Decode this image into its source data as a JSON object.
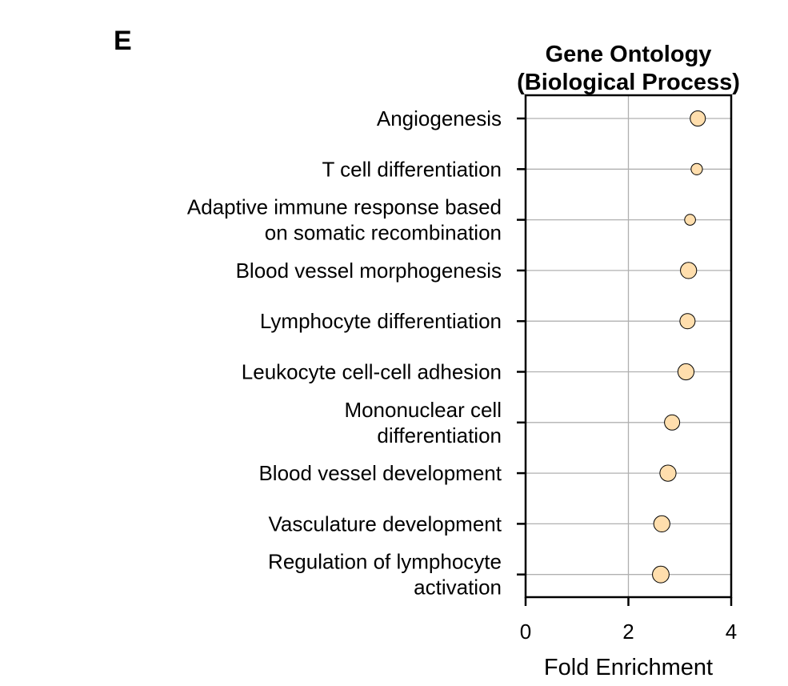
{
  "panel_letter": "E",
  "chart_data": {
    "type": "scatter",
    "title_lines": [
      "Gene Ontology",
      "(Biological Process)"
    ],
    "xlabel": "Fold Enrichment",
    "ylabel": "",
    "xlim": [
      0,
      4
    ],
    "xticks": [
      0,
      2,
      4
    ],
    "vertical_grid_at": [
      2
    ],
    "horizontal_grid": true,
    "marker_color": "#FFDEAD",
    "marker_edge_color": "#000000",
    "categories": [
      {
        "label_lines": [
          "Angiogenesis"
        ],
        "x": 3.35,
        "size_rank": 0.75
      },
      {
        "label_lines": [
          "T cell differentiation"
        ],
        "x": 3.33,
        "size_rank": 0.35
      },
      {
        "label_lines": [
          "Adaptive immune response based",
          "on somatic recombination"
        ],
        "x": 3.2,
        "size_rank": 0.3
      },
      {
        "label_lines": [
          "Blood vessel morphogenesis"
        ],
        "x": 3.17,
        "size_rank": 0.85
      },
      {
        "label_lines": [
          "Lymphocyte differentiation"
        ],
        "x": 3.15,
        "size_rank": 0.75
      },
      {
        "label_lines": [
          "Leukocyte cell-cell adhesion"
        ],
        "x": 3.12,
        "size_rank": 0.85
      },
      {
        "label_lines": [
          "Mononuclear cell",
          "differentiation"
        ],
        "x": 2.85,
        "size_rank": 0.75
      },
      {
        "label_lines": [
          "Blood vessel development"
        ],
        "x": 2.77,
        "size_rank": 0.85
      },
      {
        "label_lines": [
          "Vasculature development"
        ],
        "x": 2.65,
        "size_rank": 0.85
      },
      {
        "label_lines": [
          "Regulation of lymphocyte",
          "activation"
        ],
        "x": 2.63,
        "size_rank": 0.9
      }
    ]
  }
}
